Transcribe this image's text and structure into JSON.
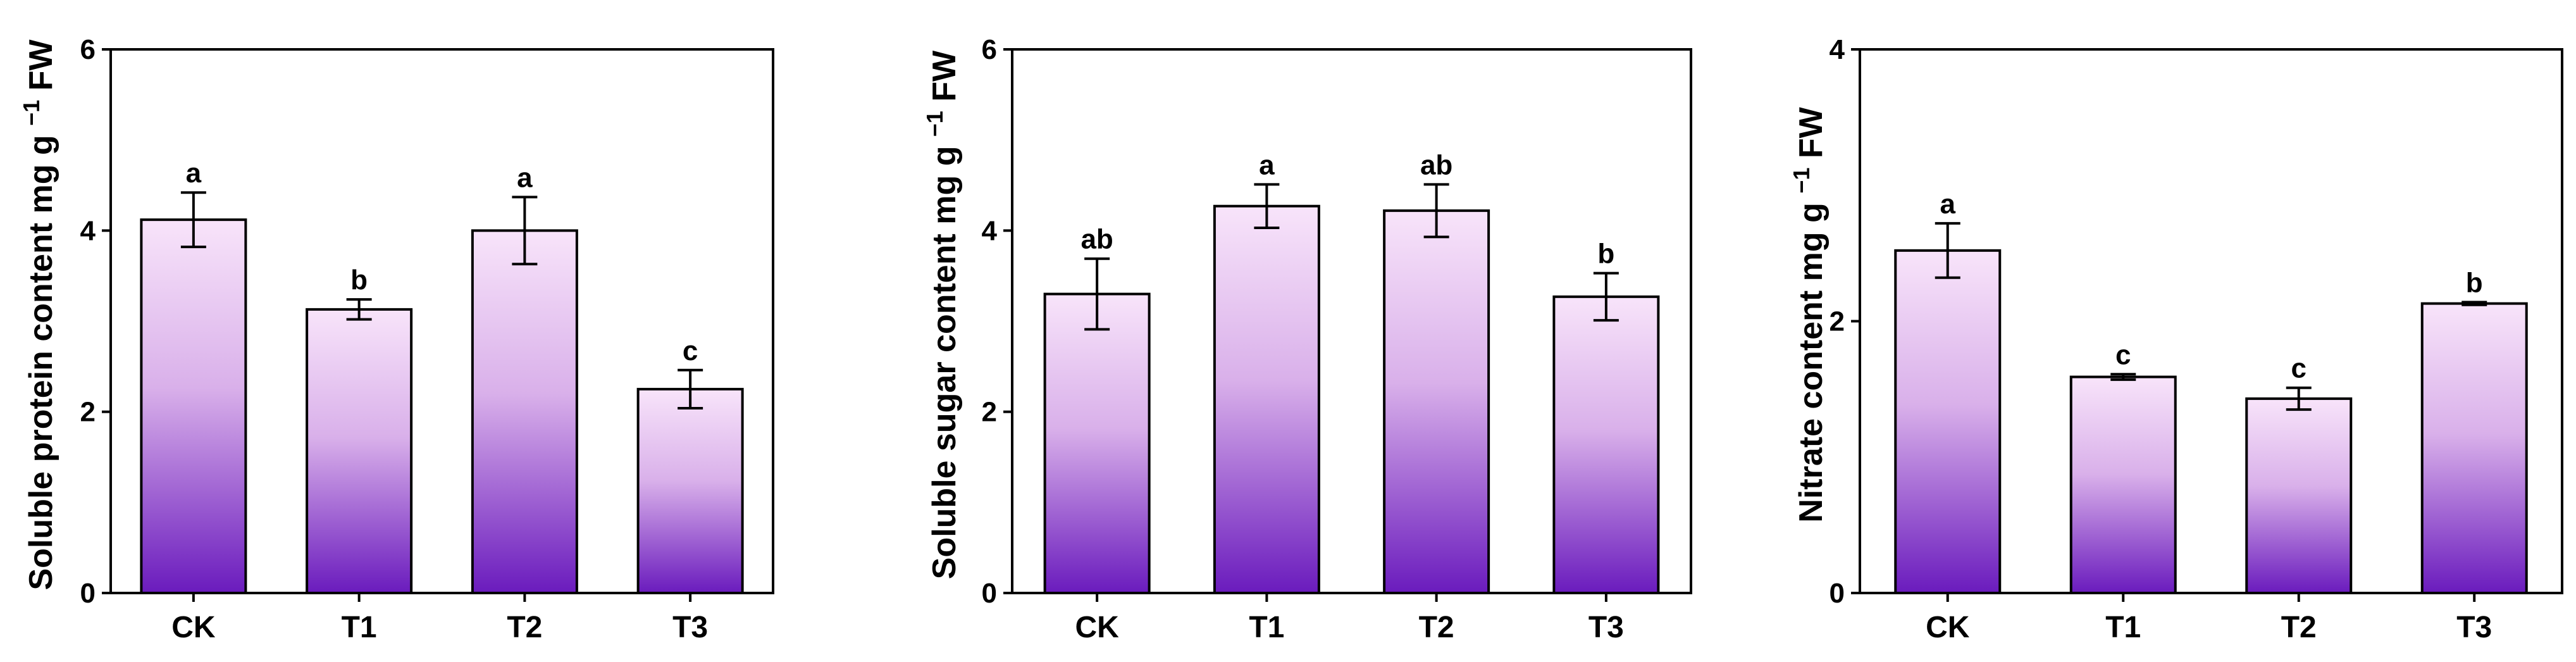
{
  "figure": {
    "bar_gradient": {
      "top": "#f8e4fa",
      "middle": "#d9b0ea",
      "bottom": "#6a1bbd"
    },
    "frame_color": "#000000"
  },
  "chart_data": [
    {
      "type": "bar",
      "ylabel": "Soluble protein content mg g",
      "ylabel_superscript": "−1",
      "ylabel_suffix": "FW",
      "categories": [
        "CK",
        "T1",
        "T2",
        "T3"
      ],
      "values": [
        4.12,
        3.13,
        4.0,
        2.25
      ],
      "errors": [
        0.3,
        0.11,
        0.37,
        0.21
      ],
      "letters": [
        "a",
        "b",
        "a",
        "c"
      ],
      "ylim": [
        0,
        6
      ],
      "yticks": [
        "0",
        "2",
        "4",
        "6"
      ]
    },
    {
      "type": "bar",
      "ylabel": "Soluble sugar content mg g",
      "ylabel_superscript": "−1",
      "ylabel_suffix": "FW",
      "categories": [
        "CK",
        "T1",
        "T2",
        "T3"
      ],
      "values": [
        3.3,
        4.27,
        4.22,
        3.27
      ],
      "errors": [
        0.39,
        0.24,
        0.29,
        0.26
      ],
      "letters": [
        "ab",
        "a",
        "ab",
        "b"
      ],
      "ylim": [
        0,
        6
      ],
      "yticks": [
        "0",
        "2",
        "4",
        "6"
      ]
    },
    {
      "type": "bar",
      "ylabel": "Nitrate content mg g",
      "ylabel_superscript": "−1",
      "ylabel_suffix": "FW",
      "categories": [
        "CK",
        "T1",
        "T2",
        "T3"
      ],
      "values": [
        2.52,
        1.59,
        1.43,
        2.13
      ],
      "errors": [
        0.2,
        0.02,
        0.08,
        0.01
      ],
      "letters": [
        "a",
        "c",
        "c",
        "b"
      ],
      "ylim": [
        0,
        4
      ],
      "yticks": [
        "0",
        "2",
        "4"
      ]
    }
  ]
}
